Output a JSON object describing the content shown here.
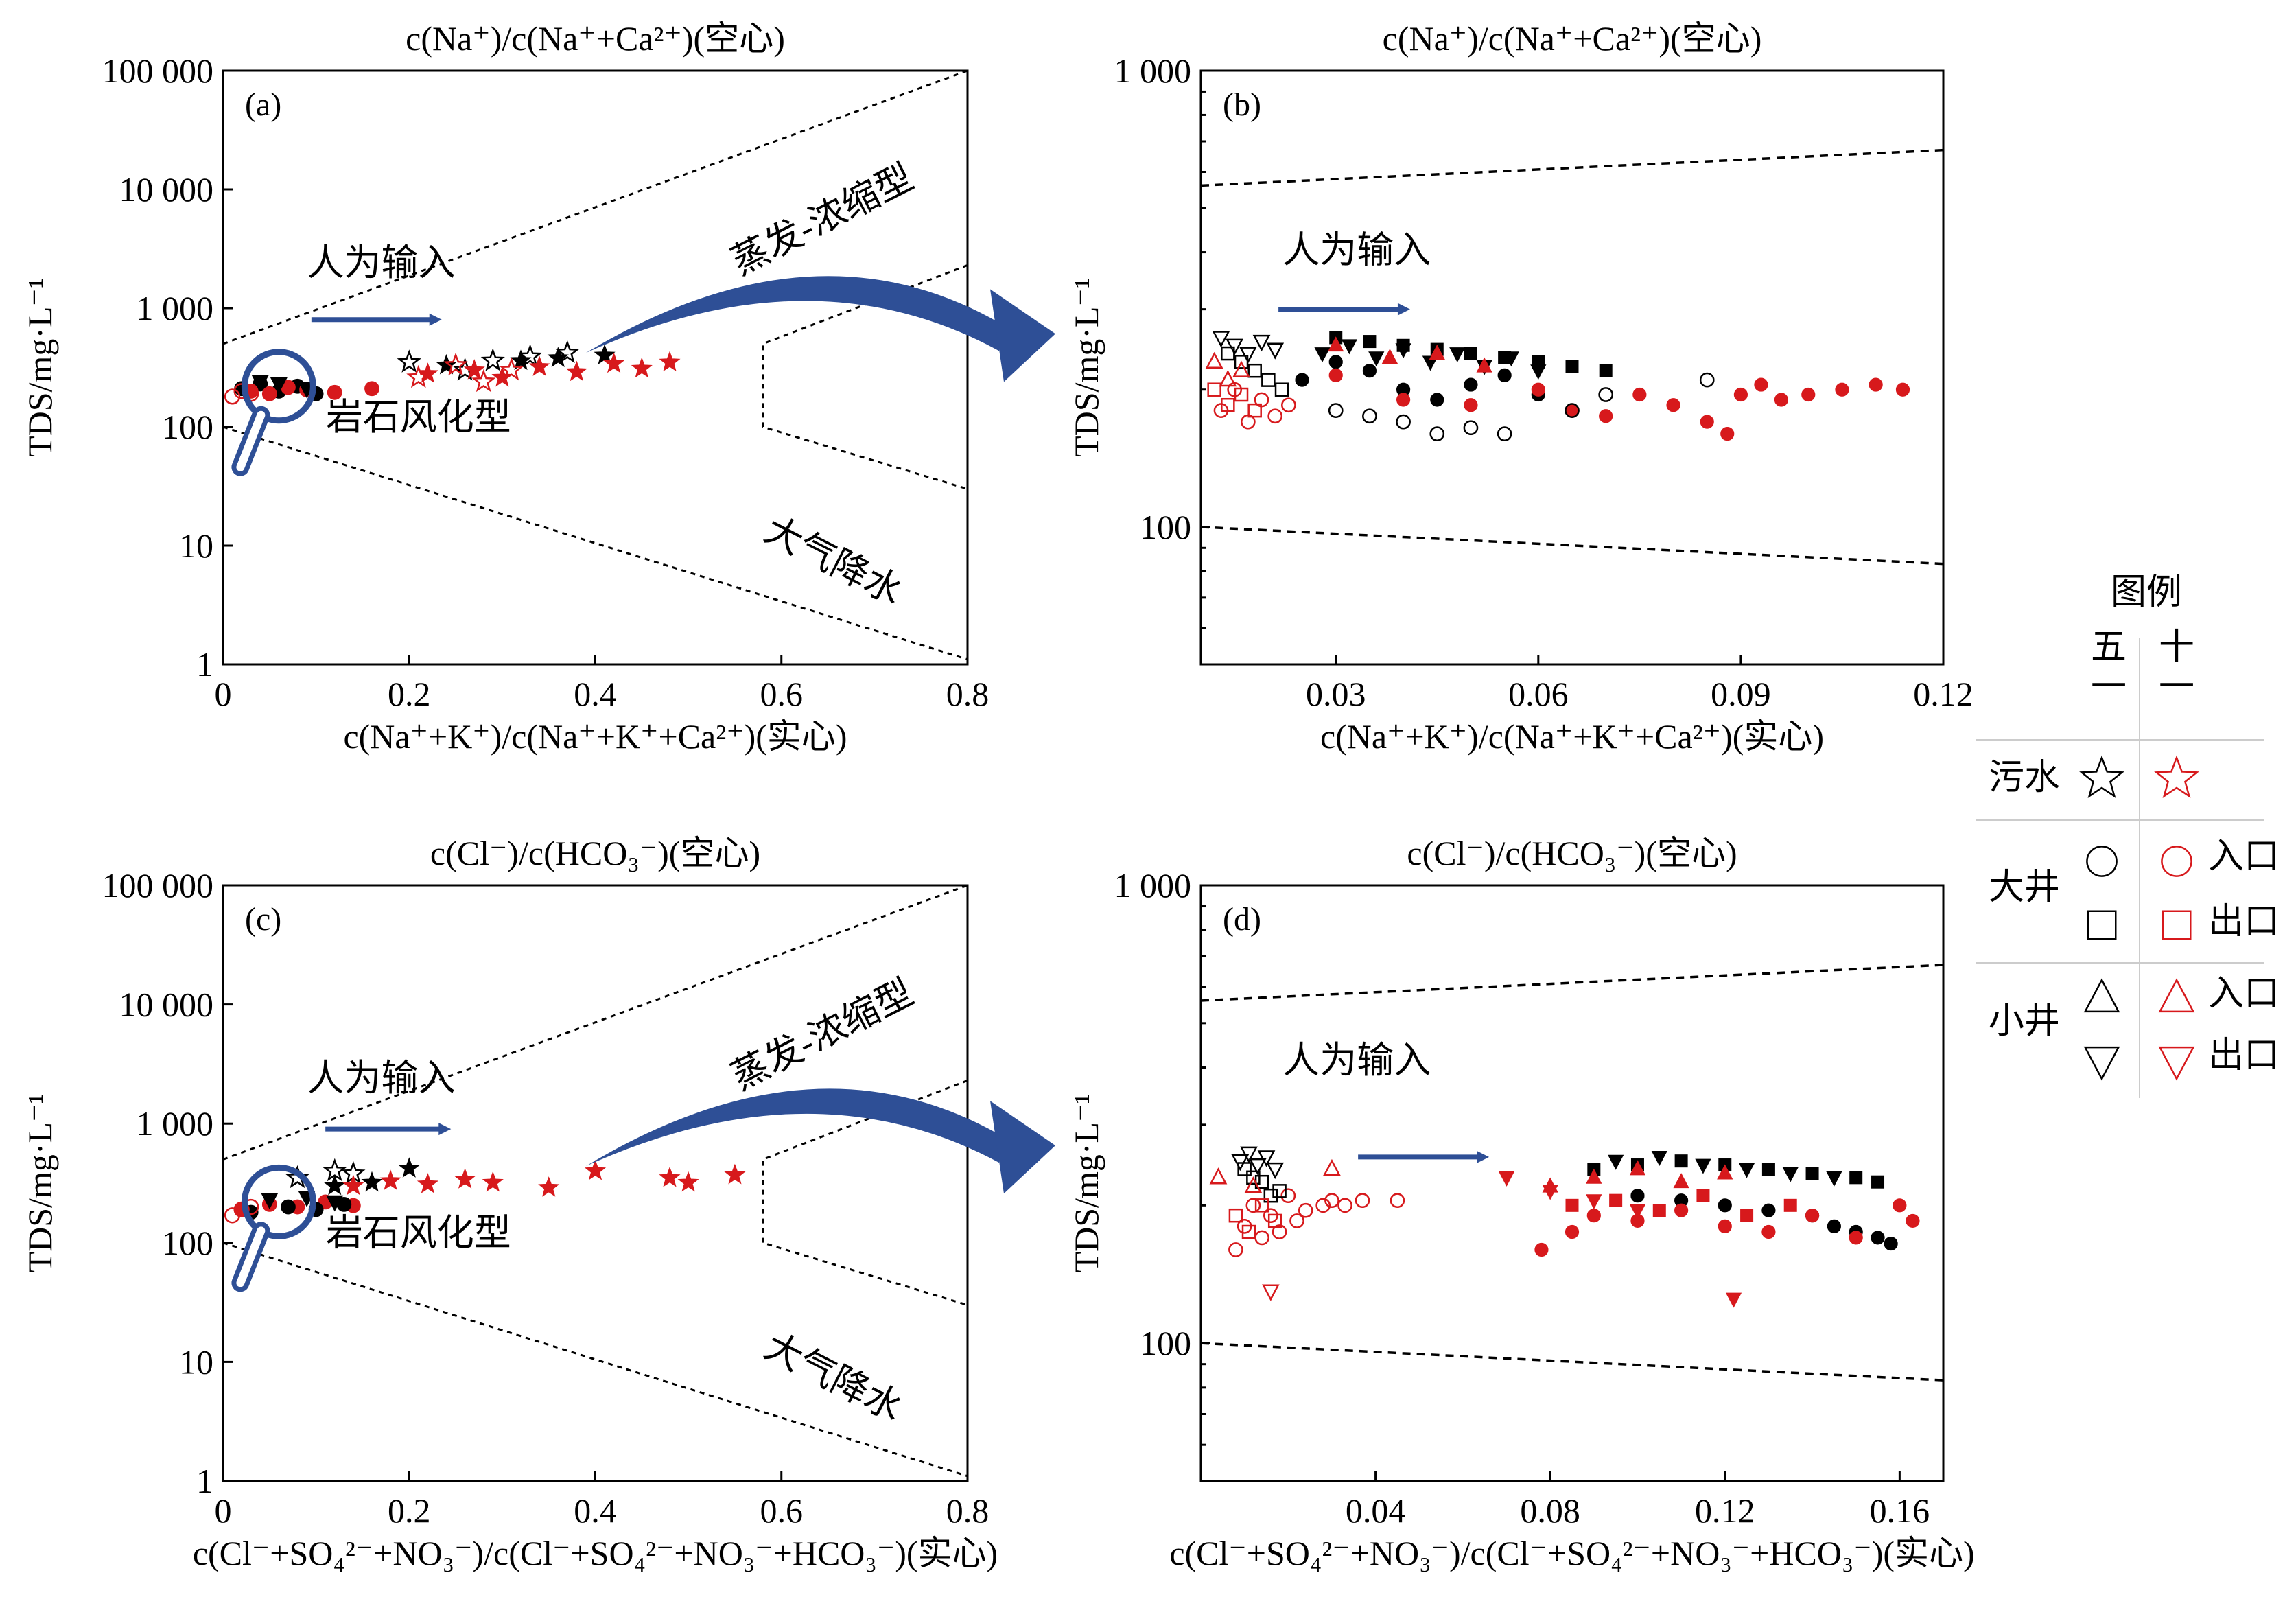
{
  "colors": {
    "may": "#000000",
    "oct": "#d7191c",
    "arrow": "#2e4f96",
    "frame": "#000000"
  },
  "chart_data": [
    {
      "type": "scatter",
      "panel_label": "(a)",
      "title": "c(Na⁺)/c(Na⁺+Ca²⁺)(空心)",
      "xlabel": "c(Na⁺+K⁺)/c(Na⁺+K⁺+Ca²⁺)(实心)",
      "ylabel": "TDS/mg·L⁻¹",
      "xlim": [
        0,
        0.8
      ],
      "ylim": [
        1,
        100000
      ],
      "yscale": "log",
      "xticks": [
        "0",
        "0.2",
        "0.4",
        "0.6",
        "0.8"
      ],
      "yticks": [
        "1",
        "10",
        "100",
        "1 000",
        "10 000",
        "100 000"
      ],
      "annotations": [
        "人为输入",
        "蒸发-浓缩型",
        "岩石风化型",
        "大气降水"
      ],
      "series": [
        {
          "name": "污水-五一",
          "marker": "star",
          "color": "#000000",
          "filled": true,
          "x": [
            0.24,
            0.32,
            0.36,
            0.41
          ],
          "y": [
            330,
            360,
            380,
            400
          ]
        },
        {
          "name": "污水-五一",
          "marker": "star",
          "color": "#000000",
          "filled": false,
          "x": [
            0.2,
            0.26,
            0.29,
            0.33,
            0.37
          ],
          "y": [
            350,
            300,
            360,
            390,
            420
          ]
        },
        {
          "name": "污水-十一",
          "marker": "star",
          "color": "#d7191c",
          "filled": true,
          "x": [
            0.22,
            0.27,
            0.3,
            0.34,
            0.38,
            0.42,
            0.45,
            0.48
          ],
          "y": [
            280,
            300,
            260,
            320,
            290,
            340,
            310,
            350
          ]
        },
        {
          "name": "污水-十一",
          "marker": "star",
          "color": "#d7191c",
          "filled": false,
          "x": [
            0.21,
            0.25,
            0.28,
            0.31
          ],
          "y": [
            260,
            330,
            240,
            300
          ]
        },
        {
          "name": "大井-五一",
          "marker": "circle",
          "color": "#000000",
          "filled": true,
          "x": [
            0.02,
            0.04,
            0.06,
            0.08,
            0.1
          ],
          "y": [
            210,
            230,
            200,
            220,
            190
          ]
        },
        {
          "name": "大井-十一",
          "marker": "circle",
          "color": "#d7191c",
          "filled": true,
          "x": [
            0.03,
            0.05,
            0.07,
            0.09,
            0.12,
            0.16
          ],
          "y": [
            200,
            190,
            215,
            205,
            195,
            210
          ]
        },
        {
          "name": "大井-十一",
          "marker": "circle",
          "color": "#d7191c",
          "filled": false,
          "x": [
            0.01,
            0.02,
            0.03
          ],
          "y": [
            180,
            200,
            190
          ]
        },
        {
          "name": "小井-五一",
          "marker": "triangle-down",
          "color": "#000000",
          "filled": true,
          "x": [
            0.04,
            0.06,
            0.09
          ],
          "y": [
            240,
            230,
            210
          ]
        }
      ]
    },
    {
      "type": "scatter",
      "panel_label": "(b)",
      "title": "c(Na⁺)/c(Na⁺+Ca²⁺)(空心)",
      "xlabel": "c(Na⁺+K⁺)/c(Na⁺+K⁺+Ca²⁺)(实心)",
      "ylabel": "TDS/mg·L⁻¹",
      "xlim": [
        0.01,
        0.12
      ],
      "ylim": [
        50,
        1000
      ],
      "yscale": "log",
      "xticks": [
        "0.03",
        "0.06",
        "0.09",
        "0.12"
      ],
      "yticks": [
        "100",
        "1 000"
      ],
      "annotations": [
        "人为输入"
      ],
      "series": [
        {
          "name": "大井-五一",
          "marker": "circle",
          "color": "#000000",
          "filled": true,
          "x": [
            0.025,
            0.03,
            0.035,
            0.04,
            0.045,
            0.05,
            0.055,
            0.06
          ],
          "y": [
            210,
            230,
            220,
            200,
            190,
            205,
            215,
            195
          ]
        },
        {
          "name": "大井-十一",
          "marker": "circle",
          "color": "#d7191c",
          "filled": true,
          "x": [
            0.03,
            0.04,
            0.05,
            0.06,
            0.065,
            0.07,
            0.075,
            0.08,
            0.085,
            0.088,
            0.09,
            0.093,
            0.096,
            0.1,
            0.105,
            0.11,
            0.114
          ],
          "y": [
            215,
            190,
            185,
            200,
            180,
            175,
            195,
            185,
            170,
            160,
            195,
            205,
            190,
            195,
            200,
            205,
            200
          ]
        },
        {
          "name": "大井-五一",
          "marker": "circle",
          "color": "#000000",
          "filled": false,
          "x": [
            0.03,
            0.035,
            0.04,
            0.045,
            0.05,
            0.055,
            0.065,
            0.07,
            0.085
          ],
          "y": [
            180,
            175,
            170,
            160,
            165,
            160,
            180,
            195,
            210
          ]
        },
        {
          "name": "大井-十一",
          "marker": "circle",
          "color": "#d7191c",
          "filled": false,
          "x": [
            0.013,
            0.015,
            0.017,
            0.019,
            0.021,
            0.023
          ],
          "y": [
            180,
            200,
            170,
            190,
            175,
            185
          ]
        },
        {
          "name": "大井-五一",
          "marker": "square",
          "color": "#000000",
          "filled": true,
          "x": [
            0.03,
            0.035,
            0.04,
            0.045,
            0.05,
            0.055,
            0.06,
            0.065,
            0.07
          ],
          "y": [
            260,
            255,
            250,
            245,
            240,
            235,
            230,
            225,
            220
          ]
        },
        {
          "name": "大井-五一",
          "marker": "square",
          "color": "#000000",
          "filled": false,
          "x": [
            0.014,
            0.016,
            0.018,
            0.02,
            0.022
          ],
          "y": [
            240,
            230,
            220,
            210,
            200
          ]
        },
        {
          "name": "大井-十一",
          "marker": "square",
          "color": "#d7191c",
          "filled": false,
          "x": [
            0.012,
            0.014,
            0.016,
            0.018
          ],
          "y": [
            200,
            185,
            195,
            180
          ]
        },
        {
          "name": "小井-五一",
          "marker": "triangle-down",
          "color": "#000000",
          "filled": true,
          "x": [
            0.028,
            0.032,
            0.036,
            0.04,
            0.044,
            0.048,
            0.052,
            0.056,
            0.06
          ],
          "y": [
            240,
            250,
            235,
            245,
            230,
            240,
            225,
            235,
            220
          ]
        },
        {
          "name": "小井-五一",
          "marker": "triangle-down",
          "color": "#000000",
          "filled": false,
          "x": [
            0.013,
            0.015,
            0.017,
            0.019,
            0.021
          ],
          "y": [
            260,
            250,
            240,
            255,
            245
          ]
        },
        {
          "name": "小井-十一",
          "marker": "triangle-up",
          "color": "#d7191c",
          "filled": true,
          "x": [
            0.03,
            0.038,
            0.045,
            0.052
          ],
          "y": [
            250,
            235,
            240,
            225
          ]
        },
        {
          "name": "小井-十一",
          "marker": "triangle-up",
          "color": "#d7191c",
          "filled": false,
          "x": [
            0.012,
            0.014,
            0.016
          ],
          "y": [
            230,
            210,
            220
          ]
        }
      ]
    },
    {
      "type": "scatter",
      "panel_label": "(c)",
      "title": "c(Cl⁻)/c(HCO₃⁻)(空心)",
      "xlabel": "c(Cl⁻+SO₄²⁻+NO₃⁻)/c(Cl⁻+SO₄²⁻+NO₃⁻+HCO₃⁻)(实心)",
      "ylabel": "TDS/mg·L⁻¹",
      "xlim": [
        0,
        0.8
      ],
      "ylim": [
        1,
        100000
      ],
      "yscale": "log",
      "xticks": [
        "0",
        "0.2",
        "0.4",
        "0.6",
        "0.8"
      ],
      "yticks": [
        "1",
        "10",
        "100",
        "1 000",
        "10 000",
        "100 000"
      ],
      "annotations": [
        "人为输入",
        "蒸发-浓缩型",
        "岩石风化型",
        "大气降水"
      ],
      "series": [
        {
          "name": "污水-五一",
          "marker": "star",
          "color": "#000000",
          "filled": true,
          "x": [
            0.12,
            0.16,
            0.2
          ],
          "y": [
            300,
            320,
            420
          ]
        },
        {
          "name": "污水-五一",
          "marker": "star",
          "color": "#000000",
          "filled": false,
          "x": [
            0.08,
            0.12,
            0.14
          ],
          "y": [
            350,
            400,
            380
          ]
        },
        {
          "name": "污水-十一",
          "marker": "star",
          "color": "#d7191c",
          "filled": true,
          "x": [
            0.14,
            0.18,
            0.22,
            0.26,
            0.29,
            0.35,
            0.4,
            0.48,
            0.5,
            0.55
          ],
          "y": [
            300,
            330,
            310,
            340,
            320,
            290,
            400,
            350,
            320,
            370
          ]
        },
        {
          "name": "大井-十一",
          "marker": "circle",
          "color": "#d7191c",
          "filled": true,
          "x": [
            0.02,
            0.05,
            0.08,
            0.11,
            0.14
          ],
          "y": [
            190,
            210,
            200,
            220,
            205
          ]
        },
        {
          "name": "大井-五一",
          "marker": "circle",
          "color": "#000000",
          "filled": true,
          "x": [
            0.03,
            0.07,
            0.1,
            0.13
          ],
          "y": [
            180,
            200,
            190,
            210
          ]
        },
        {
          "name": "大井-十一",
          "marker": "circle",
          "color": "#d7191c",
          "filled": false,
          "x": [
            0.01,
            0.02,
            0.03
          ],
          "y": [
            170,
            190,
            200
          ]
        },
        {
          "name": "小井-五一",
          "marker": "triangle-down",
          "color": "#000000",
          "filled": true,
          "x": [
            0.05,
            0.09,
            0.12
          ],
          "y": [
            230,
            240,
            220
          ]
        }
      ]
    },
    {
      "type": "scatter",
      "panel_label": "(d)",
      "title": "c(Cl⁻)/c(HCO₃⁻)(空心)",
      "xlabel": "c(Cl⁻+SO₄²⁻+NO₃⁻)/c(Cl⁻+SO₄²⁻+NO₃⁻+HCO₃⁻)(实心)",
      "ylabel": "TDS/mg·L⁻¹",
      "xlim": [
        0,
        0.17
      ],
      "ylim": [
        50,
        1000
      ],
      "yscale": "log",
      "xticks": [
        "0.04",
        "0.08",
        "0.12",
        "0.16"
      ],
      "yticks": [
        "100",
        "1 000"
      ],
      "annotations": [
        "人为输入"
      ],
      "series": [
        {
          "name": "大井-五一",
          "marker": "circle",
          "color": "#000000",
          "filled": true,
          "x": [
            0.1,
            0.11,
            0.12,
            0.13,
            0.14,
            0.145,
            0.15,
            0.155,
            0.158
          ],
          "y": [
            210,
            205,
            200,
            195,
            190,
            180,
            175,
            170,
            165
          ]
        },
        {
          "name": "大井-十一",
          "marker": "circle",
          "color": "#d7191c",
          "filled": true,
          "x": [
            0.078,
            0.085,
            0.09,
            0.1,
            0.11,
            0.12,
            0.13,
            0.14,
            0.15,
            0.16,
            0.163
          ],
          "y": [
            160,
            175,
            190,
            185,
            195,
            180,
            175,
            190,
            170,
            200,
            185
          ]
        },
        {
          "name": "大井-十一",
          "marker": "circle",
          "color": "#d7191c",
          "filled": false,
          "x": [
            0.008,
            0.01,
            0.012,
            0.014,
            0.016,
            0.018,
            0.02,
            0.022,
            0.024,
            0.028,
            0.03,
            0.033,
            0.037,
            0.045
          ],
          "y": [
            160,
            180,
            200,
            170,
            190,
            175,
            210,
            185,
            195,
            200,
            205,
            200,
            205,
            205
          ]
        },
        {
          "name": "大井-五一",
          "marker": "square",
          "color": "#000000",
          "filled": true,
          "x": [
            0.09,
            0.1,
            0.11,
            0.12,
            0.13,
            0.14,
            0.15,
            0.155
          ],
          "y": [
            240,
            245,
            250,
            245,
            240,
            235,
            230,
            225
          ]
        },
        {
          "name": "大井-五一",
          "marker": "square",
          "color": "#000000",
          "filled": false,
          "x": [
            0.01,
            0.012,
            0.014,
            0.016,
            0.018
          ],
          "y": [
            240,
            230,
            225,
            210,
            215
          ]
        },
        {
          "name": "大井-十一",
          "marker": "square",
          "color": "#d7191c",
          "filled": true,
          "x": [
            0.085,
            0.095,
            0.105,
            0.115,
            0.125,
            0.135
          ],
          "y": [
            200,
            205,
            195,
            210,
            190,
            200
          ]
        },
        {
          "name": "大井-十一",
          "marker": "square",
          "color": "#d7191c",
          "filled": false,
          "x": [
            0.008,
            0.011,
            0.014,
            0.017
          ],
          "y": [
            190,
            175,
            200,
            185
          ]
        },
        {
          "name": "小井-五一",
          "marker": "triangle-down",
          "color": "#000000",
          "filled": true,
          "x": [
            0.095,
            0.105,
            0.115,
            0.125,
            0.135,
            0.145
          ],
          "y": [
            250,
            255,
            245,
            240,
            235,
            230
          ]
        },
        {
          "name": "小井-五一",
          "marker": "triangle-down",
          "color": "#000000",
          "filled": false,
          "x": [
            0.009,
            0.011,
            0.013,
            0.015,
            0.017
          ],
          "y": [
            250,
            260,
            245,
            255,
            240
          ]
        },
        {
          "name": "小井-十一",
          "marker": "triangle-down",
          "color": "#d7191c",
          "filled": true,
          "x": [
            0.07,
            0.08,
            0.09,
            0.1,
            0.122
          ],
          "y": [
            230,
            215,
            205,
            195,
            125
          ]
        },
        {
          "name": "小井-十一",
          "marker": "triangle-down",
          "color": "#d7191c",
          "filled": false,
          "x": [
            0.016
          ],
          "y": [
            130
          ]
        },
        {
          "name": "小井-十一",
          "marker": "triangle-up",
          "color": "#d7191c",
          "filled": true,
          "x": [
            0.08,
            0.09,
            0.1,
            0.11,
            0.12
          ],
          "y": [
            220,
            230,
            240,
            225,
            235
          ]
        },
        {
          "name": "小井-十一",
          "marker": "triangle-up",
          "color": "#d7191c",
          "filled": false,
          "x": [
            0.004,
            0.012,
            0.03
          ],
          "y": [
            230,
            220,
            240
          ]
        }
      ]
    }
  ],
  "legend": {
    "title": "图例",
    "col_may": "五一",
    "col_oct": "十一",
    "rows": [
      {
        "group": "污水",
        "marker": "star",
        "sub": ""
      },
      {
        "group": "大井",
        "marker": "circle",
        "sub": "入口"
      },
      {
        "group": "",
        "marker": "square",
        "sub": "出口"
      },
      {
        "group": "小井",
        "marker": "triangle-up",
        "sub": "入口"
      },
      {
        "group": "",
        "marker": "triangle-down",
        "sub": "出口"
      }
    ]
  }
}
